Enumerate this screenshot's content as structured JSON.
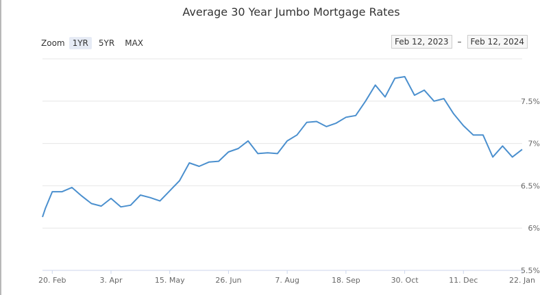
{
  "chart_data": {
    "type": "line",
    "title": "Average 30 Year Jumbo Mortgage Rates",
    "zoom": {
      "label": "Zoom",
      "buttons": [
        "1YR",
        "5YR",
        "MAX"
      ],
      "active": "1YR"
    },
    "range": {
      "from": "Feb 12, 2023",
      "separator": "–",
      "to": "Feb 12, 2024"
    },
    "x_tick_labels": [
      "20. Feb",
      "3. Apr",
      "15. May",
      "26. Jun",
      "7. Aug",
      "18. Sep",
      "30. Oct",
      "11. Dec",
      "22. Jan"
    ],
    "y_tick_labels": [
      "5.5%",
      "6%",
      "6.5%",
      "7%",
      "7.5%"
    ],
    "y_ticks": [
      5.5,
      6,
      6.5,
      7,
      7.5
    ],
    "ylim": [
      5.5,
      8.0
    ],
    "grid": true,
    "line_color": "#4a8fce",
    "x": [
      "Feb 13, 2023",
      "Feb 15, 2023",
      "Feb 20, 2023",
      "Feb 27, 2023",
      "Mar 6, 2023",
      "Mar 13, 2023",
      "Mar 20, 2023",
      "Mar 27, 2023",
      "Apr 3, 2023",
      "Apr 10, 2023",
      "Apr 17, 2023",
      "Apr 24, 2023",
      "May 1, 2023",
      "May 8, 2023",
      "May 15, 2023",
      "May 22, 2023",
      "May 29, 2023",
      "Jun 5, 2023",
      "Jun 12, 2023",
      "Jun 19, 2023",
      "Jun 26, 2023",
      "Jul 3, 2023",
      "Jul 10, 2023",
      "Jul 17, 2023",
      "Jul 24, 2023",
      "Jul 31, 2023",
      "Aug 7, 2023",
      "Aug 14, 2023",
      "Aug 21, 2023",
      "Aug 28, 2023",
      "Sep 4, 2023",
      "Sep 11, 2023",
      "Sep 18, 2023",
      "Sep 25, 2023",
      "Oct 2, 2023",
      "Oct 9, 2023",
      "Oct 16, 2023",
      "Oct 23, 2023",
      "Oct 30, 2023",
      "Nov 6, 2023",
      "Nov 13, 2023",
      "Nov 20, 2023",
      "Nov 27, 2023",
      "Dec 4, 2023",
      "Dec 11, 2023",
      "Dec 18, 2023",
      "Dec 25, 2023",
      "Jan 1, 2024",
      "Jan 8, 2024",
      "Jan 15, 2024",
      "Jan 22, 2024"
    ],
    "values": [
      6.13,
      6.23,
      6.43,
      6.43,
      6.48,
      6.38,
      6.29,
      6.26,
      6.35,
      6.25,
      6.27,
      6.39,
      6.36,
      6.32,
      6.44,
      6.56,
      6.77,
      6.73,
      6.78,
      6.79,
      6.9,
      6.94,
      7.03,
      6.88,
      6.89,
      6.88,
      7.03,
      7.1,
      7.25,
      7.26,
      7.2,
      7.24,
      7.31,
      7.33,
      7.5,
      7.69,
      7.55,
      7.77,
      7.79,
      7.57,
      7.63,
      7.5,
      7.53,
      7.35,
      7.21,
      7.1,
      7.1,
      6.84,
      6.97,
      6.84,
      6.93
    ]
  }
}
